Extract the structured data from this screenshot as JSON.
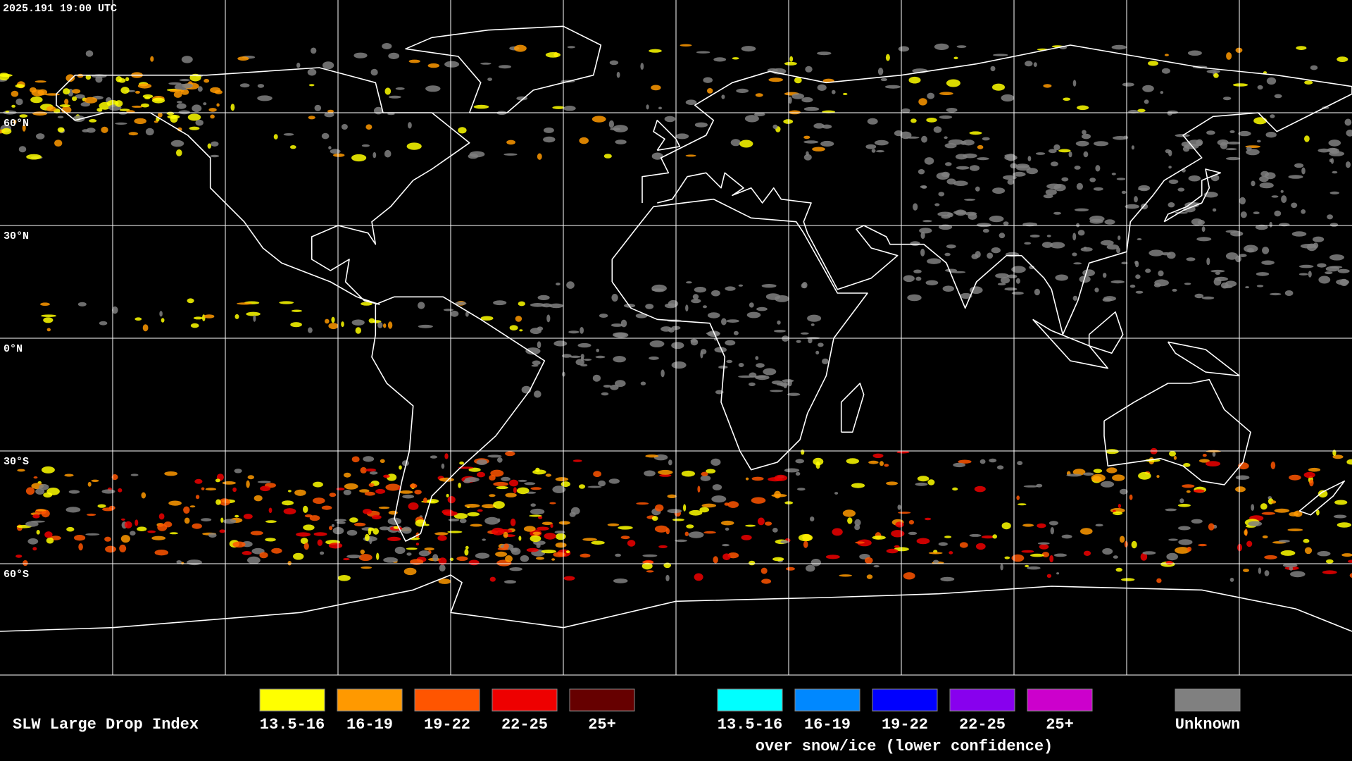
{
  "timestamp": "2025.191 19:00 UTC",
  "latitude_labels": [
    "60°N",
    "30°N",
    "0°N",
    "30°S",
    "60°S"
  ],
  "legend": {
    "title": "SLW Large Drop Index",
    "groups": [
      {
        "items": [
          {
            "label": "13.5-16",
            "color": "#ffff00"
          },
          {
            "label": "16-19",
            "color": "#ff9900"
          },
          {
            "label": "19-22",
            "color": "#ff5500"
          },
          {
            "label": "22-25",
            "color": "#ee0000"
          },
          {
            "label": "25+",
            "color": "#660000"
          }
        ]
      },
      {
        "items": [
          {
            "label": "13.5-16",
            "color": "#00ffff"
          },
          {
            "label": "16-19",
            "color": "#0088ff"
          },
          {
            "label": "19-22",
            "color": "#0000ff"
          },
          {
            "label": "22-25",
            "color": "#8800ee"
          },
          {
            "label": "25+",
            "color": "#cc00cc"
          }
        ],
        "note": "over snow/ice (lower confidence)"
      }
    ],
    "unknown": {
      "label": "Unknown",
      "color": "#808080"
    }
  }
}
